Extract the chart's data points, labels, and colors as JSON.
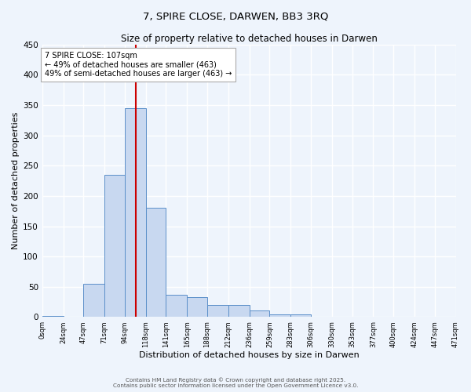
{
  "title": "7, SPIRE CLOSE, DARWEN, BB3 3RQ",
  "subtitle": "Size of property relative to detached houses in Darwen",
  "xlabel": "Distribution of detached houses by size in Darwen",
  "ylabel": "Number of detached properties",
  "bin_edges": [
    0,
    24,
    47,
    71,
    94,
    118,
    141,
    165,
    188,
    212,
    236,
    259,
    283,
    306,
    330,
    353,
    377,
    400,
    424,
    447,
    471
  ],
  "bar_heights": [
    2,
    0,
    55,
    235,
    345,
    180,
    37,
    33,
    20,
    20,
    11,
    5,
    5,
    1,
    0,
    0,
    0,
    0,
    0,
    0
  ],
  "bar_color": "#c8d8f0",
  "bar_edge_color": "#5b8fc9",
  "vline_x": 107,
  "vline_color": "#cc0000",
  "annotation_title": "7 SPIRE CLOSE: 107sqm",
  "annotation_line1": "← 49% of detached houses are smaller (463)",
  "annotation_line2": "49% of semi-detached houses are larger (463) →",
  "annotation_box_color": "#ffffff",
  "annotation_box_edge": "#888888",
  "ylim": [
    0,
    450
  ],
  "tick_labels": [
    "0sqm",
    "24sqm",
    "47sqm",
    "71sqm",
    "94sqm",
    "118sqm",
    "141sqm",
    "165sqm",
    "188sqm",
    "212sqm",
    "236sqm",
    "259sqm",
    "283sqm",
    "306sqm",
    "330sqm",
    "353sqm",
    "377sqm",
    "400sqm",
    "424sqm",
    "447sqm",
    "471sqm"
  ],
  "background_color": "#eef4fc",
  "grid_color": "#ffffff",
  "footer1": "Contains HM Land Registry data © Crown copyright and database right 2025.",
  "footer2": "Contains public sector information licensed under the Open Government Licence v3.0."
}
